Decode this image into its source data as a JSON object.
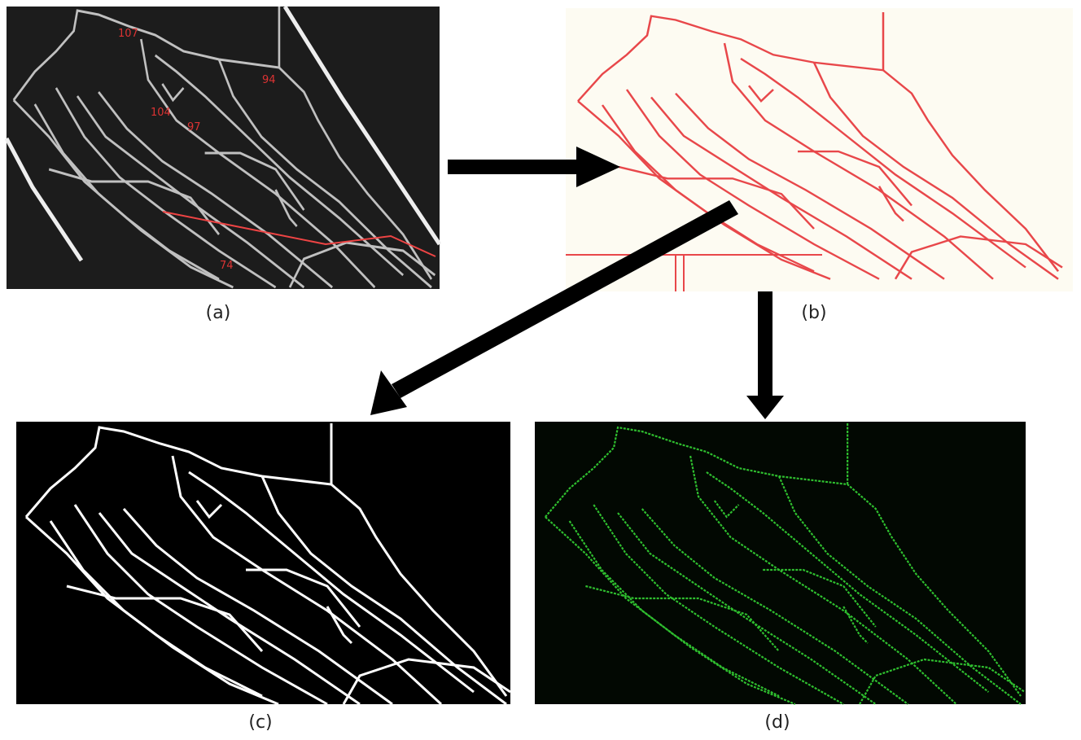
{
  "panels": {
    "a": {
      "caption": "(a)",
      "labels": [
        "107",
        "94",
        "104",
        "97",
        "74"
      ]
    },
    "b": {
      "caption": "(b)"
    },
    "c": {
      "caption": "(c)"
    },
    "d": {
      "caption": "(d)"
    }
  }
}
